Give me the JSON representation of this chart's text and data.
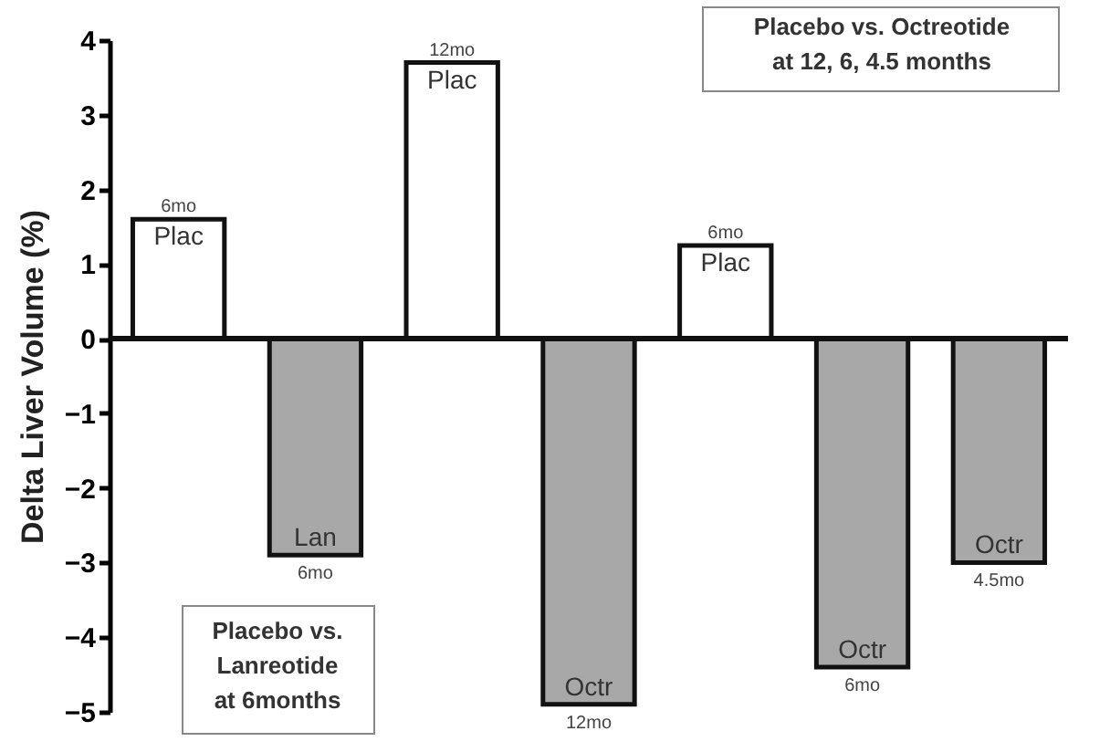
{
  "chart_data": {
    "type": "bar",
    "ylabel": "Delta Liver Volume (%)",
    "categories": [
      null,
      null,
      null,
      null,
      null,
      null,
      null
    ],
    "values": [
      1.6,
      -2.9,
      3.7,
      -4.9,
      1.25,
      -4.4,
      -3.0
    ],
    "colors": [
      "#ffffff",
      "#a8a8a8",
      "#ffffff",
      "#a8a8a8",
      "#ffffff",
      "#a8a8a8",
      "#a8a8a8"
    ],
    "ylim": [
      -5,
      4
    ],
    "yticks": [
      -5,
      -4,
      -3,
      -2,
      -1,
      0,
      1,
      2,
      3,
      4
    ],
    "annotations": [
      {
        "text": "Plac",
        "y": 1.6
      },
      {
        "text": "6mo",
        "y": 1.6
      },
      {
        "text": "Lan",
        "y": -2.9
      },
      {
        "text": "6mo",
        "y": -2.9
      },
      {
        "text": "Plac",
        "y": 3.7
      },
      {
        "text": "12mo",
        "y": 3.7
      },
      {
        "text": "Octr",
        "y": -4.9
      },
      {
        "text": "12mo",
        "y": -4.9
      },
      {
        "text": "Plac",
        "y": 1.25
      },
      {
        "text": "6mo",
        "y": 1.25
      },
      {
        "text": "Octr",
        "y": -4.4
      },
      {
        "text": "6mo",
        "y": -4.4
      },
      {
        "text": "Octr",
        "y": -3.0
      },
      {
        "text": "4.5mo",
        "y": -3.0
      },
      "Placebo vs. Octreotide\nat 12, 6, 4.5 months",
      "Placebo vs.\nLanreotide\nat 6months"
    ]
  }
}
